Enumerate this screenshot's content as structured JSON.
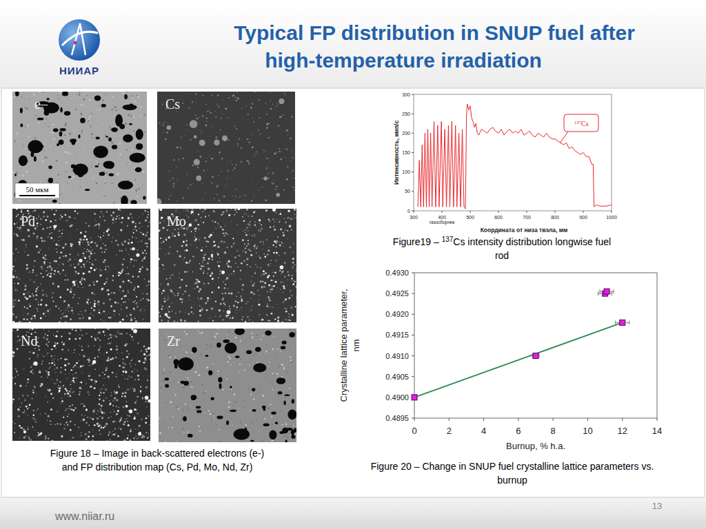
{
  "header": {
    "title": [
      "Typical FP distribution in SNUP fuel after",
      "high-temperature irradiation"
    ],
    "logo_text": "НИИАР"
  },
  "micrographs": {
    "panels": [
      "e–",
      "Cs",
      "Pd",
      "Mo",
      "Nd",
      "Zr"
    ],
    "scale_bar": "50 мкм",
    "caption": [
      "Figure 18 – Image in back-scattered electrons (e-)",
      "and FP distribution map (Cs, Pd, Mo, Nd, Zr)"
    ]
  },
  "chart_data": [
    {
      "type": "line",
      "x_label": "Координата от низа твэла, мм",
      "y_label": "Интенсивность, имп/с",
      "x_sublabel": "газосборник",
      "annotation": {
        "sup": "137",
        "text": "Cs"
      },
      "caption": {
        "prefix": "Figure19 – ",
        "sup": "137",
        "lines": [
          "Cs intensity distribution  longwise fuel",
          "rod"
        ]
      },
      "x": [
        315,
        320,
        325,
        330,
        335,
        340,
        345,
        350,
        355,
        360,
        365,
        372,
        378,
        385,
        390,
        398,
        403,
        410,
        416,
        423,
        428,
        435,
        441,
        448,
        453,
        460,
        466,
        472,
        478,
        483,
        487,
        490,
        495,
        500,
        505,
        510,
        515,
        520,
        525,
        530,
        540,
        550,
        560,
        570,
        580,
        590,
        600,
        610,
        620,
        630,
        640,
        650,
        660,
        670,
        680,
        690,
        700,
        710,
        720,
        730,
        740,
        750,
        760,
        770,
        780,
        790,
        800,
        810,
        820,
        830,
        840,
        850,
        860,
        870,
        880,
        890,
        900,
        910,
        920,
        930,
        935,
        938,
        945,
        960,
        980,
        1000
      ],
      "values": [
        10,
        130,
        10,
        170,
        10,
        200,
        10,
        210,
        10,
        200,
        10,
        230,
        10,
        220,
        10,
        230,
        10,
        210,
        10,
        220,
        10,
        230,
        10,
        220,
        10,
        200,
        10,
        210,
        10,
        5,
        250,
        275,
        260,
        270,
        240,
        230,
        215,
        225,
        200,
        195,
        210,
        205,
        200,
        210,
        215,
        205,
        200,
        210,
        195,
        205,
        210,
        200,
        205,
        200,
        210,
        195,
        200,
        205,
        195,
        190,
        200,
        195,
        190,
        200,
        190,
        185,
        185,
        180,
        175,
        170,
        175,
        160,
        165,
        155,
        150,
        145,
        150,
        140,
        140,
        120,
        120,
        10,
        15,
        12,
        12,
        15
      ],
      "color": "#e8262b",
      "xlim": [
        300,
        1000
      ],
      "xticks": [
        300,
        400,
        500,
        600,
        700,
        800,
        900,
        1000
      ],
      "ylim": [
        0,
        300
      ],
      "yticks": [
        0,
        50,
        100,
        150,
        200,
        250,
        300
      ],
      "grid": false
    },
    {
      "type": "scatter",
      "x_label": "Burnup, % h.a.",
      "y_label": [
        "Crystalline lattice parameter,",
        "nm"
      ],
      "caption": [
        "Figure 20 – Change in SNUP fuel crystalline lattice parameters vs.",
        "burnup"
      ],
      "series": [
        {
          "type": "scatter",
          "marker": "square",
          "color": "#e020e0",
          "x": [
            0,
            7,
            11,
            11.1,
            12
          ],
          "values": [
            0.49,
            0.491,
            0.4925,
            0.49255,
            0.4918
          ],
          "x_err": [
            0.1,
            0.2,
            0.4,
            0.4,
            0.4
          ]
        },
        {
          "type": "line",
          "line_style": "solid",
          "color": "#2e8b57",
          "x": [
            0,
            12
          ],
          "values": [
            0.49,
            0.4918
          ]
        }
      ],
      "xlim": [
        0,
        14
      ],
      "xticks": [
        0,
        2,
        4,
        6,
        8,
        10,
        12,
        14
      ],
      "ylim": [
        0.4895,
        0.493
      ],
      "yticks": [
        {
          "value": 0.4895,
          "label": "0.4895"
        },
        {
          "value": 0.49,
          "label": "0.4900"
        },
        {
          "value": 0.4905,
          "label": "0.4905"
        },
        {
          "value": 0.491,
          "label": "0.4910"
        },
        {
          "value": 0.4915,
          "label": "0.4915"
        },
        {
          "value": 0.492,
          "label": "0.4920"
        },
        {
          "value": 0.4925,
          "label": "0.4925"
        },
        {
          "value": 0.493,
          "label": "0.4930"
        }
      ],
      "grid": false
    }
  ],
  "footer": {
    "url": "www.niiar.ru",
    "page": 13
  }
}
